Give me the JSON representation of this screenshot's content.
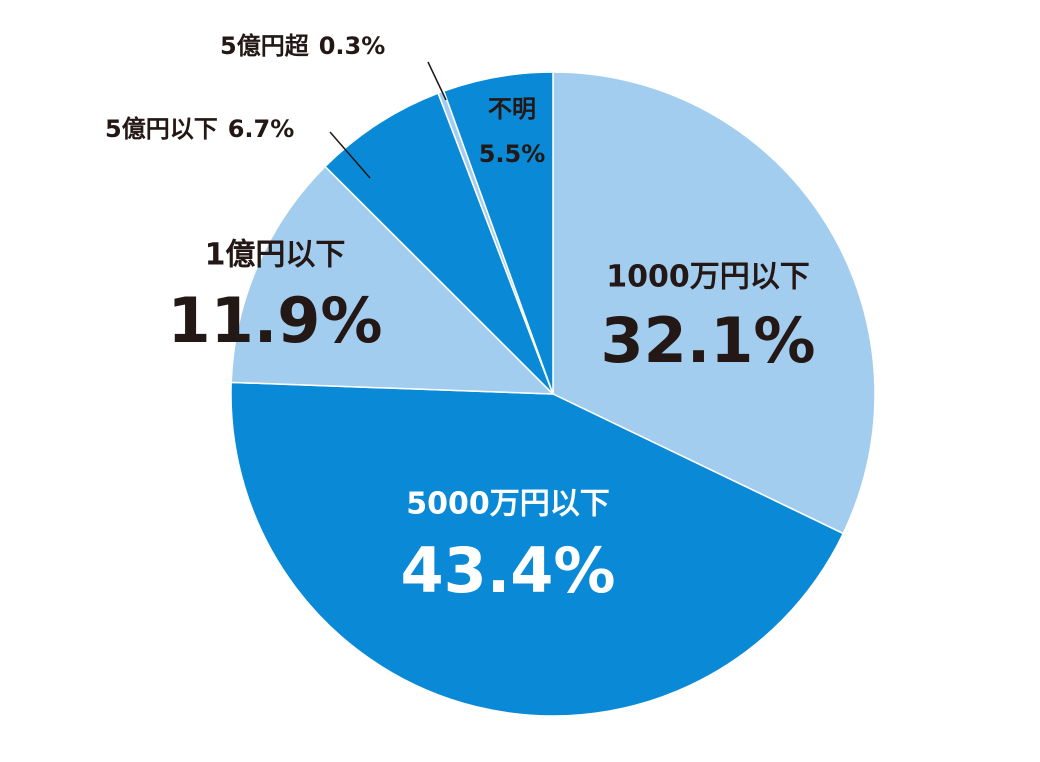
{
  "chart_data": {
    "type": "pie",
    "categories": [
      "1000万円以下",
      "5000万円以下",
      "1億円以下",
      "5億円以下",
      "5億円超",
      "不明"
    ],
    "values": [
      32.1,
      43.4,
      11.9,
      6.7,
      0.3,
      5.5
    ],
    "value_labels": [
      "32.1%",
      "43.4%",
      "11.9%",
      "6.7%",
      "0.3%",
      "5.5%"
    ],
    "colors": [
      "#a3cdef",
      "#0a8ad6",
      "#a3cdef",
      "#0a8ad6",
      "#a3cdef",
      "#0a8ad6"
    ]
  }
}
